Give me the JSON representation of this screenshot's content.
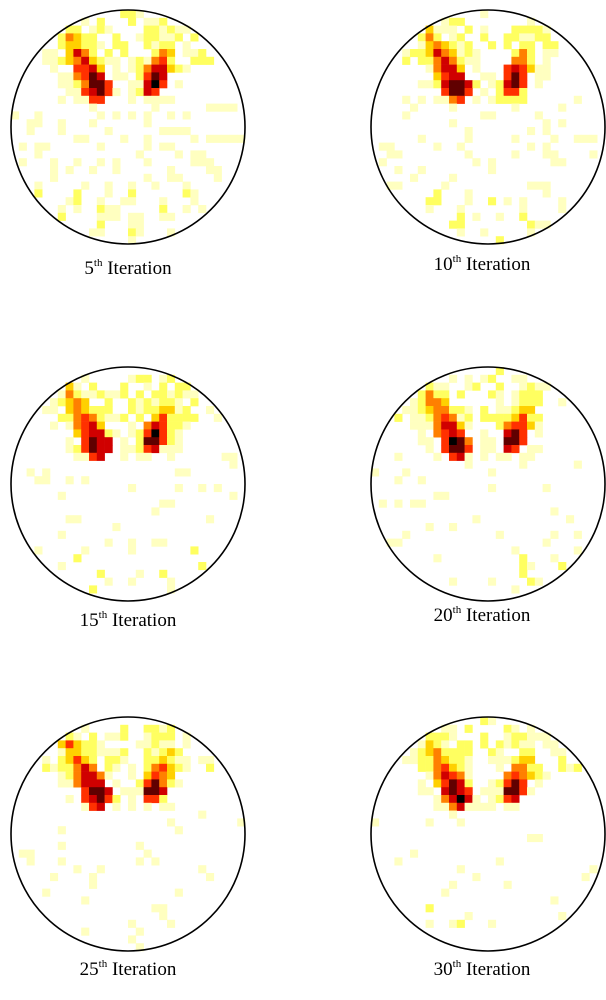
{
  "figure": {
    "panels": [
      {
        "id": "iter-5",
        "number": "5",
        "ordinal": "th",
        "word": "Iteration",
        "diffuse": 1.0
      },
      {
        "id": "iter-10",
        "number": "10",
        "ordinal": "th",
        "word": "Iteration",
        "diffuse": 0.75
      },
      {
        "id": "iter-15",
        "number": "15",
        "ordinal": "th",
        "word": "Iteration",
        "diffuse": 0.5
      },
      {
        "id": "iter-20",
        "number": "20",
        "ordinal": "th",
        "word": "Iteration",
        "diffuse": 0.4
      },
      {
        "id": "iter-25",
        "number": "25",
        "ordinal": "th",
        "word": "Iteration",
        "diffuse": 0.3
      },
      {
        "id": "iter-30",
        "number": "30",
        "ordinal": "th",
        "word": "Iteration",
        "diffuse": 0.25
      }
    ],
    "colormap": [
      "#ffffff",
      "#ffffc0",
      "#ffff60",
      "#ffd000",
      "#ff8000",
      "#ff3000",
      "#d00000",
      "#600000",
      "#000000"
    ],
    "circle_color": "#000000"
  }
}
